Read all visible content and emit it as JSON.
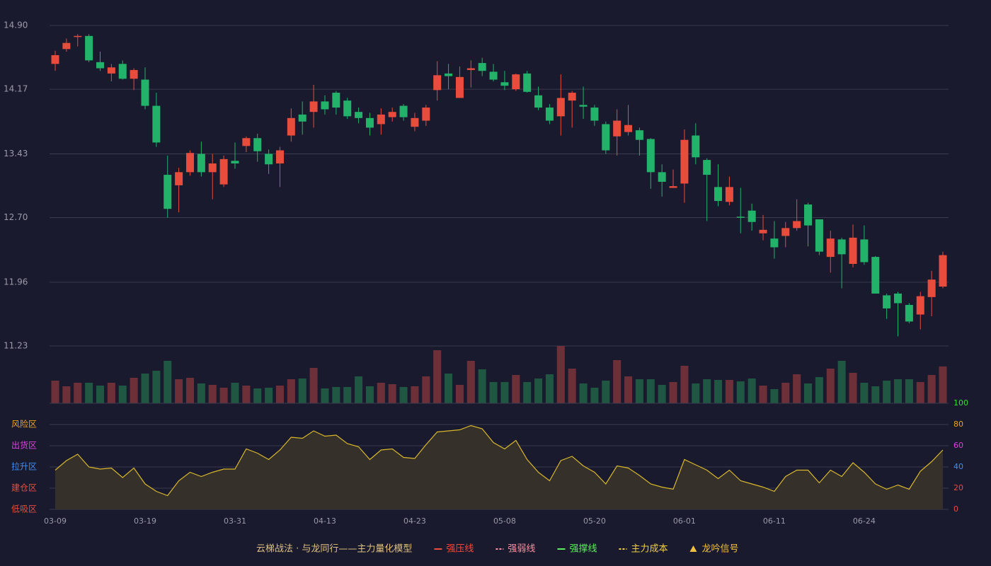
{
  "chart_data": [
    {
      "type": "candlestick",
      "categories": [
        "03-09",
        null,
        null,
        null,
        null,
        null,
        null,
        null,
        "03-19",
        null,
        null,
        null,
        null,
        null,
        null,
        null,
        "03-31",
        null,
        null,
        null,
        null,
        null,
        null,
        null,
        "04-13",
        null,
        null,
        null,
        null,
        null,
        null,
        null,
        "04-23",
        null,
        null,
        null,
        null,
        null,
        null,
        null,
        "05-08",
        null,
        null,
        null,
        null,
        null,
        null,
        null,
        "05-20",
        null,
        null,
        null,
        null,
        null,
        null,
        null,
        "06-01",
        null,
        null,
        null,
        null,
        null,
        null,
        null,
        "06-11",
        null,
        null,
        null,
        null,
        null,
        null,
        null,
        "06-24",
        null,
        null,
        null,
        null,
        null,
        null,
        null
      ],
      "open": [
        14.46,
        14.63,
        14.77,
        14.78,
        14.48,
        14.35,
        14.46,
        14.29,
        14.28,
        13.98,
        13.19,
        13.07,
        13.22,
        13.43,
        13.22,
        13.08,
        13.35,
        13.52,
        13.61,
        13.43,
        13.32,
        13.64,
        13.88,
        13.91,
        14.03,
        14.13,
        14.04,
        13.91,
        13.84,
        13.77,
        13.85,
        13.98,
        13.74,
        13.81,
        14.16,
        14.35,
        14.07,
        14.39,
        14.47,
        14.37,
        14.25,
        14.17,
        14.35,
        14.1,
        13.96,
        13.86,
        14.04,
        13.99,
        13.96,
        13.77,
        13.63,
        13.68,
        13.7,
        13.6,
        13.22,
        13.04,
        13.09,
        13.64,
        13.36,
        13.05,
        12.88,
        12.71,
        12.78,
        12.52,
        12.46,
        12.49,
        12.58,
        12.85,
        12.68,
        12.25,
        12.45,
        12.17,
        12.45,
        12.25,
        11.81,
        11.83,
        11.7,
        11.59,
        11.79,
        11.91
      ],
      "close": [
        14.56,
        14.7,
        14.78,
        14.5,
        14.41,
        14.42,
        14.29,
        14.39,
        13.98,
        13.56,
        12.8,
        13.22,
        13.44,
        13.22,
        13.32,
        13.37,
        13.32,
        13.61,
        13.46,
        13.31,
        13.47,
        13.84,
        13.8,
        14.03,
        13.94,
        13.96,
        13.86,
        13.84,
        13.73,
        13.88,
        13.91,
        13.85,
        13.84,
        13.96,
        14.33,
        14.32,
        14.31,
        14.41,
        14.38,
        14.28,
        14.21,
        14.34,
        14.14,
        13.96,
        13.81,
        14.07,
        14.13,
        13.97,
        13.81,
        13.47,
        13.81,
        13.76,
        13.59,
        13.22,
        13.11,
        13.06,
        13.59,
        13.39,
        13.19,
        12.89,
        13.05,
        12.7,
        12.65,
        12.56,
        12.36,
        12.58,
        12.66,
        12.61,
        12.31,
        12.46,
        12.28,
        12.47,
        12.19,
        11.83,
        11.66,
        11.72,
        11.51,
        11.8,
        11.99,
        12.27
      ],
      "high": [
        14.61,
        14.75,
        14.8,
        14.8,
        14.6,
        14.46,
        14.5,
        14.41,
        14.42,
        14.13,
        13.41,
        13.27,
        13.47,
        13.57,
        13.43,
        13.41,
        13.56,
        13.63,
        13.66,
        13.48,
        13.51,
        13.95,
        14.03,
        14.22,
        14.1,
        14.15,
        14.07,
        13.96,
        13.9,
        13.95,
        13.96,
        14.0,
        13.9,
        13.99,
        14.49,
        14.46,
        14.43,
        14.5,
        14.53,
        14.46,
        14.38,
        14.35,
        14.38,
        14.2,
        14.0,
        14.34,
        14.15,
        14.2,
        13.99,
        13.8,
        13.94,
        13.99,
        13.73,
        13.61,
        13.31,
        13.25,
        13.71,
        13.78,
        13.38,
        13.31,
        13.17,
        13.04,
        12.86,
        12.73,
        12.66,
        12.65,
        12.91,
        12.87,
        12.68,
        12.55,
        12.47,
        12.62,
        12.61,
        12.26,
        11.83,
        11.85,
        11.72,
        11.85,
        12.09,
        12.31
      ],
      "low": [
        14.38,
        14.6,
        14.66,
        14.48,
        14.38,
        14.26,
        14.28,
        14.16,
        13.94,
        13.51,
        12.7,
        12.76,
        13.18,
        13.17,
        12.91,
        13.05,
        13.26,
        13.45,
        13.34,
        13.2,
        13.05,
        13.57,
        13.65,
        13.73,
        13.88,
        13.88,
        13.83,
        13.78,
        13.64,
        13.65,
        13.8,
        13.81,
        13.69,
        13.75,
        14.04,
        14.17,
        14.07,
        14.19,
        14.32,
        14.26,
        14.16,
        14.15,
        14.13,
        13.93,
        13.77,
        13.64,
        13.73,
        13.83,
        13.75,
        13.43,
        13.41,
        13.64,
        13.41,
        13.03,
        12.94,
        13.04,
        12.87,
        13.31,
        12.66,
        12.83,
        12.84,
        12.52,
        12.55,
        12.44,
        12.23,
        12.36,
        12.55,
        12.37,
        12.27,
        12.07,
        11.89,
        12.13,
        12.16,
        11.83,
        11.54,
        11.34,
        11.49,
        11.42,
        11.57,
        11.89
      ],
      "up_color": "#e84c3d",
      "down_color": "#23b26a",
      "ylim": [
        11.23,
        14.9
      ],
      "yticks": [
        {
          "value": 14.9,
          "label": "14.90"
        },
        14.17,
        13.43,
        {
          "value": 12.7,
          "label": "12.70"
        },
        11.96,
        11.23
      ],
      "grid": true
    },
    {
      "type": "bar",
      "values": [
        32,
        24,
        29,
        29,
        25,
        29,
        25,
        36,
        42,
        46,
        60,
        34,
        36,
        28,
        26,
        22,
        29,
        25,
        21,
        22,
        25,
        34,
        35,
        50,
        21,
        23,
        23,
        38,
        24,
        29,
        27,
        23,
        24,
        38,
        75,
        42,
        26,
        60,
        48,
        30,
        30,
        40,
        30,
        35,
        41,
        81,
        49,
        28,
        22,
        32,
        61,
        38,
        34,
        34,
        26,
        30,
        53,
        28,
        34,
        33,
        33,
        31,
        35,
        25,
        20,
        29,
        41,
        28,
        37,
        49,
        60,
        43,
        29,
        24,
        32,
        34,
        34,
        30,
        40,
        52
      ],
      "up_color": "#6e3038",
      "down_color": "#1f5743"
    },
    {
      "type": "line",
      "values": [
        37,
        46,
        52,
        40,
        38,
        39,
        30,
        39,
        24,
        17,
        13,
        27,
        35,
        31,
        35,
        38,
        38,
        57,
        53,
        47,
        56,
        68,
        67,
        74,
        69,
        70,
        62,
        59,
        47,
        56,
        57,
        49,
        48,
        61,
        73,
        74,
        75,
        79,
        76,
        63,
        57,
        65,
        47,
        35,
        27,
        46,
        50,
        41,
        35,
        24,
        41,
        39,
        32,
        24,
        21,
        19,
        47,
        42,
        37,
        29,
        37,
        27,
        24,
        21,
        17,
        31,
        37,
        37,
        25,
        37,
        31,
        44,
        35,
        24,
        19,
        23,
        19,
        36,
        45,
        56
      ],
      "color": "#d9b72a",
      "fill": "#35302a",
      "ylim": [
        0,
        100
      ],
      "yticks": [
        0,
        20,
        40,
        60,
        80,
        100
      ],
      "ytick_colors": [
        "#e84c3d",
        "#e84c3d",
        "#3d8ff0",
        "#e040e0",
        "#f0a020",
        "#3ddc3d"
      ],
      "zones": [
        {
          "value": 80,
          "label": "风险区",
          "color": "#f0a020"
        },
        {
          "value": 60,
          "label": "出货区",
          "color": "#e040e0"
        },
        {
          "value": 40,
          "label": "拉升区",
          "color": "#3d8ff0"
        },
        {
          "value": 20,
          "label": "建仓区",
          "color": "#e84c3d"
        },
        {
          "value": 0,
          "label": "低吸区",
          "color": "#e84c3d"
        }
      ],
      "grid": true,
      "legend_title": "云梯战法 · 与龙同行——主力量化模型",
      "legend_title_color": "#e0c080",
      "legend_position": "bottom",
      "legend": [
        {
          "name": "强压线",
          "color": "#f04a3a",
          "style": "solid"
        },
        {
          "name": "强弱线",
          "color": "#ff8fa0",
          "style": "dashed"
        },
        {
          "name": "强撑线",
          "color": "#5cf05c",
          "style": "solid"
        },
        {
          "name": "主力成本",
          "color": "#f0d040",
          "style": "dashed"
        },
        {
          "name": "龙吟信号",
          "color": "#f0c040",
          "style": "triangle"
        }
      ]
    }
  ]
}
